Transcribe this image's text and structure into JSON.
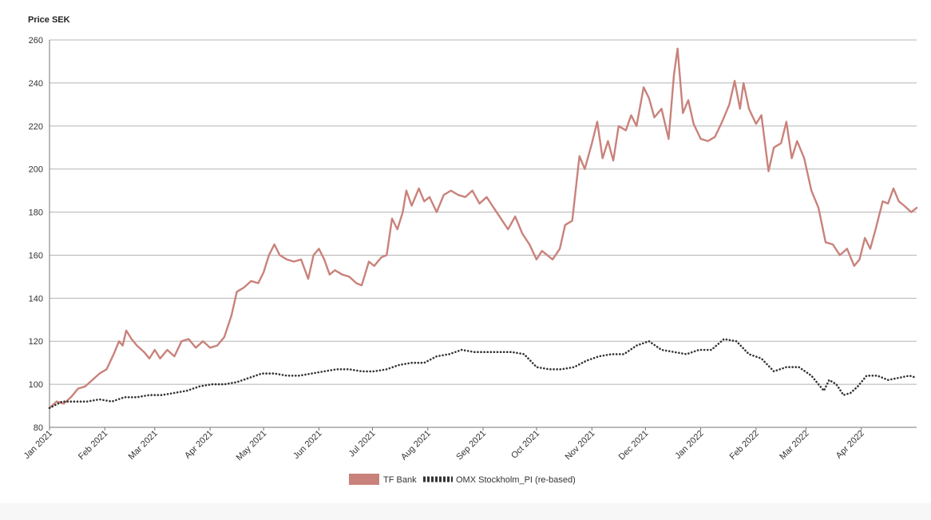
{
  "chart_data": {
    "type": "line",
    "ylabel": "Price SEK",
    "ylim": [
      80,
      260
    ],
    "yticks": [
      80,
      100,
      120,
      140,
      160,
      180,
      200,
      220,
      240,
      260
    ],
    "xticks": [
      "Jan 2021",
      "Feb 2021",
      "Mar 2021",
      "Apr 2021",
      "May 2021",
      "Jun 2021",
      "Jul 2021",
      "Aug 2021",
      "Sep 2021",
      "Oct 2021",
      "Nov 2021",
      "Dec 2021",
      "Jan 2022",
      "Feb 2022",
      "Mar 2022",
      "Apr 2022"
    ],
    "x_months": [
      "2021-01",
      "2021-02",
      "2021-03",
      "2021-04",
      "2021-05",
      "2021-06",
      "2021-07",
      "2021-08",
      "2021-09",
      "2021-10",
      "2021-11",
      "2021-12",
      "2022-01",
      "2022-02",
      "2022-03",
      "2022-04"
    ],
    "grid": "horizontal",
    "legend_position": "bottom",
    "colors": {
      "tf_bank": "#c9827b",
      "omx": "#333333"
    },
    "series": [
      {
        "name": "TF Bank",
        "style": "solid",
        "points": [
          [
            "2021-01-01",
            89
          ],
          [
            "2021-01-05",
            92
          ],
          [
            "2021-01-09",
            91
          ],
          [
            "2021-01-13",
            94
          ],
          [
            "2021-01-17",
            98
          ],
          [
            "2021-01-21",
            99
          ],
          [
            "2021-01-25",
            102
          ],
          [
            "2021-01-29",
            105
          ],
          [
            "2021-02-02",
            107
          ],
          [
            "2021-02-06",
            114
          ],
          [
            "2021-02-09",
            120
          ],
          [
            "2021-02-11",
            118
          ],
          [
            "2021-02-13",
            125
          ],
          [
            "2021-02-16",
            121
          ],
          [
            "2021-02-19",
            118
          ],
          [
            "2021-02-23",
            115
          ],
          [
            "2021-02-26",
            112
          ],
          [
            "2021-03-01",
            116
          ],
          [
            "2021-03-04",
            112
          ],
          [
            "2021-03-08",
            116
          ],
          [
            "2021-03-12",
            113
          ],
          [
            "2021-03-16",
            120
          ],
          [
            "2021-03-20",
            121
          ],
          [
            "2021-03-24",
            117
          ],
          [
            "2021-03-28",
            120
          ],
          [
            "2021-04-01",
            117
          ],
          [
            "2021-04-05",
            118
          ],
          [
            "2021-04-09",
            122
          ],
          [
            "2021-04-13",
            132
          ],
          [
            "2021-04-16",
            143
          ],
          [
            "2021-04-20",
            145
          ],
          [
            "2021-04-24",
            148
          ],
          [
            "2021-04-28",
            147
          ],
          [
            "2021-05-01",
            152
          ],
          [
            "2021-05-04",
            160
          ],
          [
            "2021-05-07",
            165
          ],
          [
            "2021-05-10",
            160
          ],
          [
            "2021-05-14",
            158
          ],
          [
            "2021-05-18",
            157
          ],
          [
            "2021-05-22",
            158
          ],
          [
            "2021-05-26",
            149
          ],
          [
            "2021-05-29",
            160
          ],
          [
            "2021-06-01",
            163
          ],
          [
            "2021-06-04",
            158
          ],
          [
            "2021-06-07",
            151
          ],
          [
            "2021-06-10",
            153
          ],
          [
            "2021-06-14",
            151
          ],
          [
            "2021-06-18",
            150
          ],
          [
            "2021-06-22",
            147
          ],
          [
            "2021-06-25",
            146
          ],
          [
            "2021-06-29",
            157
          ],
          [
            "2021-07-02",
            155
          ],
          [
            "2021-07-06",
            159
          ],
          [
            "2021-07-09",
            160
          ],
          [
            "2021-07-12",
            177
          ],
          [
            "2021-07-15",
            172
          ],
          [
            "2021-07-18",
            180
          ],
          [
            "2021-07-20",
            190
          ],
          [
            "2021-07-23",
            183
          ],
          [
            "2021-07-27",
            191
          ],
          [
            "2021-07-30",
            185
          ],
          [
            "2021-08-02",
            187
          ],
          [
            "2021-08-06",
            180
          ],
          [
            "2021-08-10",
            188
          ],
          [
            "2021-08-14",
            190
          ],
          [
            "2021-08-18",
            188
          ],
          [
            "2021-08-22",
            187
          ],
          [
            "2021-08-26",
            190
          ],
          [
            "2021-08-30",
            184
          ],
          [
            "2021-09-03",
            187
          ],
          [
            "2021-09-07",
            182
          ],
          [
            "2021-09-11",
            177
          ],
          [
            "2021-09-15",
            172
          ],
          [
            "2021-09-19",
            178
          ],
          [
            "2021-09-23",
            170
          ],
          [
            "2021-09-27",
            165
          ],
          [
            "2021-10-01",
            158
          ],
          [
            "2021-10-04",
            162
          ],
          [
            "2021-10-07",
            160
          ],
          [
            "2021-10-10",
            158
          ],
          [
            "2021-10-14",
            163
          ],
          [
            "2021-10-17",
            174
          ],
          [
            "2021-10-21",
            176
          ],
          [
            "2021-10-25",
            206
          ],
          [
            "2021-10-28",
            200
          ],
          [
            "2021-11-01",
            212
          ],
          [
            "2021-11-04",
            222
          ],
          [
            "2021-11-07",
            205
          ],
          [
            "2021-11-10",
            213
          ],
          [
            "2021-11-13",
            204
          ],
          [
            "2021-11-16",
            220
          ],
          [
            "2021-11-20",
            218
          ],
          [
            "2021-11-23",
            225
          ],
          [
            "2021-11-26",
            220
          ],
          [
            "2021-11-30",
            238
          ],
          [
            "2021-12-03",
            233
          ],
          [
            "2021-12-06",
            224
          ],
          [
            "2021-12-10",
            228
          ],
          [
            "2021-12-14",
            214
          ],
          [
            "2021-12-17",
            244
          ],
          [
            "2021-12-19",
            256
          ],
          [
            "2021-12-22",
            226
          ],
          [
            "2021-12-25",
            232
          ],
          [
            "2021-12-28",
            221
          ],
          [
            "2022-01-01",
            214
          ],
          [
            "2022-01-05",
            213
          ],
          [
            "2022-01-09",
            215
          ],
          [
            "2022-01-13",
            222
          ],
          [
            "2022-01-17",
            230
          ],
          [
            "2022-01-20",
            241
          ],
          [
            "2022-01-23",
            228
          ],
          [
            "2022-01-25",
            240
          ],
          [
            "2022-01-28",
            228
          ],
          [
            "2022-02-01",
            221
          ],
          [
            "2022-02-04",
            225
          ],
          [
            "2022-02-08",
            199
          ],
          [
            "2022-02-11",
            210
          ],
          [
            "2022-02-15",
            212
          ],
          [
            "2022-02-18",
            222
          ],
          [
            "2022-02-21",
            205
          ],
          [
            "2022-02-24",
            213
          ],
          [
            "2022-02-28",
            205
          ],
          [
            "2022-03-04",
            190
          ],
          [
            "2022-03-08",
            182
          ],
          [
            "2022-03-12",
            166
          ],
          [
            "2022-03-16",
            165
          ],
          [
            "2022-03-20",
            160
          ],
          [
            "2022-03-24",
            163
          ],
          [
            "2022-03-28",
            155
          ],
          [
            "2022-03-31",
            158
          ],
          [
            "2022-04-03",
            168
          ],
          [
            "2022-04-06",
            163
          ],
          [
            "2022-04-09",
            172
          ],
          [
            "2022-04-13",
            185
          ],
          [
            "2022-04-16",
            184
          ],
          [
            "2022-04-19",
            191
          ],
          [
            "2022-04-22",
            185
          ],
          [
            "2022-04-25",
            183
          ],
          [
            "2022-04-29",
            180
          ],
          [
            "2022-05-02",
            182
          ]
        ]
      },
      {
        "name": "OMX Stockholm_PI (re-based)",
        "style": "dotted",
        "points": [
          [
            "2021-01-01",
            89
          ],
          [
            "2021-01-08",
            92
          ],
          [
            "2021-01-15",
            92
          ],
          [
            "2021-01-22",
            92
          ],
          [
            "2021-01-29",
            93
          ],
          [
            "2021-02-05",
            92
          ],
          [
            "2021-02-12",
            94
          ],
          [
            "2021-02-19",
            94
          ],
          [
            "2021-02-26",
            95
          ],
          [
            "2021-03-05",
            95
          ],
          [
            "2021-03-12",
            96
          ],
          [
            "2021-03-19",
            97
          ],
          [
            "2021-03-26",
            99
          ],
          [
            "2021-04-02",
            100
          ],
          [
            "2021-04-09",
            100
          ],
          [
            "2021-04-16",
            101
          ],
          [
            "2021-04-23",
            103
          ],
          [
            "2021-04-30",
            105
          ],
          [
            "2021-05-07",
            105
          ],
          [
            "2021-05-14",
            104
          ],
          [
            "2021-05-21",
            104
          ],
          [
            "2021-05-28",
            105
          ],
          [
            "2021-06-04",
            106
          ],
          [
            "2021-06-11",
            107
          ],
          [
            "2021-06-18",
            107
          ],
          [
            "2021-06-25",
            106
          ],
          [
            "2021-07-02",
            106
          ],
          [
            "2021-07-09",
            107
          ],
          [
            "2021-07-16",
            109
          ],
          [
            "2021-07-23",
            110
          ],
          [
            "2021-07-30",
            110
          ],
          [
            "2021-08-06",
            113
          ],
          [
            "2021-08-13",
            114
          ],
          [
            "2021-08-20",
            116
          ],
          [
            "2021-08-27",
            115
          ],
          [
            "2021-09-03",
            115
          ],
          [
            "2021-09-10",
            115
          ],
          [
            "2021-09-17",
            115
          ],
          [
            "2021-09-24",
            114
          ],
          [
            "2021-10-01",
            108
          ],
          [
            "2021-10-08",
            107
          ],
          [
            "2021-10-15",
            107
          ],
          [
            "2021-10-22",
            108
          ],
          [
            "2021-10-29",
            111
          ],
          [
            "2021-11-05",
            113
          ],
          [
            "2021-11-12",
            114
          ],
          [
            "2021-11-19",
            114
          ],
          [
            "2021-11-26",
            118
          ],
          [
            "2021-12-03",
            120
          ],
          [
            "2021-12-10",
            116
          ],
          [
            "2021-12-17",
            115
          ],
          [
            "2021-12-24",
            114
          ],
          [
            "2021-12-31",
            116
          ],
          [
            "2022-01-07",
            116
          ],
          [
            "2022-01-14",
            121
          ],
          [
            "2022-01-21",
            120
          ],
          [
            "2022-01-28",
            114
          ],
          [
            "2022-02-04",
            112
          ],
          [
            "2022-02-11",
            106
          ],
          [
            "2022-02-18",
            108
          ],
          [
            "2022-02-25",
            108
          ],
          [
            "2022-03-04",
            104
          ],
          [
            "2022-03-08",
            100
          ],
          [
            "2022-03-11",
            97
          ],
          [
            "2022-03-14",
            102
          ],
          [
            "2022-03-18",
            100
          ],
          [
            "2022-03-22",
            95
          ],
          [
            "2022-03-26",
            96
          ],
          [
            "2022-03-30",
            99
          ],
          [
            "2022-04-04",
            104
          ],
          [
            "2022-04-10",
            104
          ],
          [
            "2022-04-16",
            102
          ],
          [
            "2022-04-22",
            103
          ],
          [
            "2022-04-28",
            104
          ],
          [
            "2022-05-02",
            103
          ]
        ]
      }
    ]
  }
}
